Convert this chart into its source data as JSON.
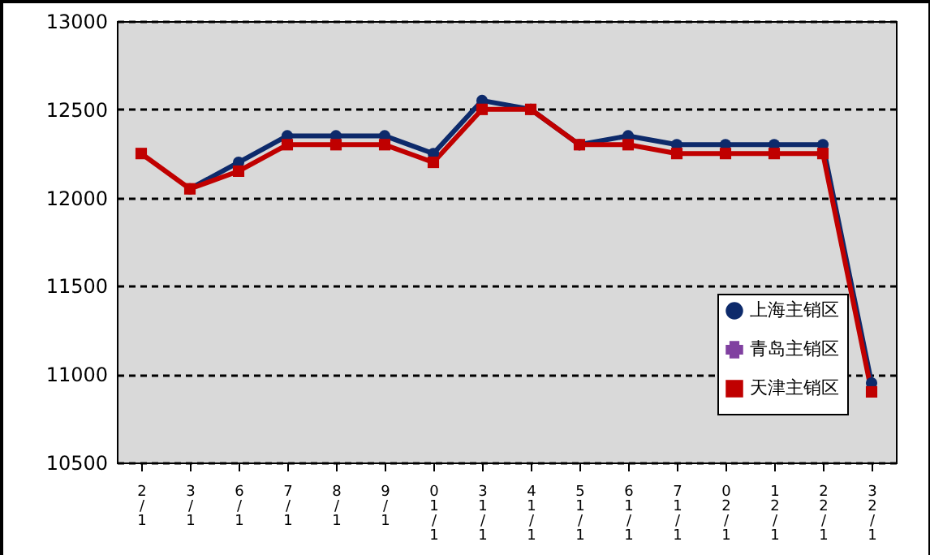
{
  "chart_data": {
    "type": "line",
    "categories": [
      "2/1",
      "3/1",
      "6/1",
      "7/1",
      "8/1",
      "9/1",
      "01/1",
      "31/1",
      "41/1",
      "51/1",
      "61/1",
      "71/1",
      "02/1",
      "12/1",
      "22/1",
      "32/1"
    ],
    "series": [
      {
        "name": "上海主销区",
        "color": "#0d2a6b",
        "marker": "circle",
        "values": [
          null,
          12050,
          12200,
          12350,
          12350,
          12350,
          12250,
          12550,
          12500,
          12300,
          12350,
          12300,
          12300,
          12300,
          12300,
          10950
        ]
      },
      {
        "name": "青岛主销区",
        "color": "#8040a0",
        "marker": "cross",
        "values": [
          null,
          null,
          null,
          null,
          null,
          null,
          null,
          null,
          null,
          null,
          null,
          null,
          null,
          null,
          null,
          null
        ]
      },
      {
        "name": "天津主销区",
        "color": "#c00000",
        "marker": "square",
        "values": [
          12250,
          12050,
          12150,
          12300,
          12300,
          12300,
          12200,
          12500,
          12500,
          12300,
          12300,
          12250,
          12250,
          12250,
          12250,
          10900
        ]
      }
    ],
    "ylim": [
      10500,
      13000
    ],
    "yticks": [
      10500,
      11000,
      11500,
      12000,
      12500,
      13000
    ],
    "grid": "y",
    "legend": "bottom right"
  }
}
